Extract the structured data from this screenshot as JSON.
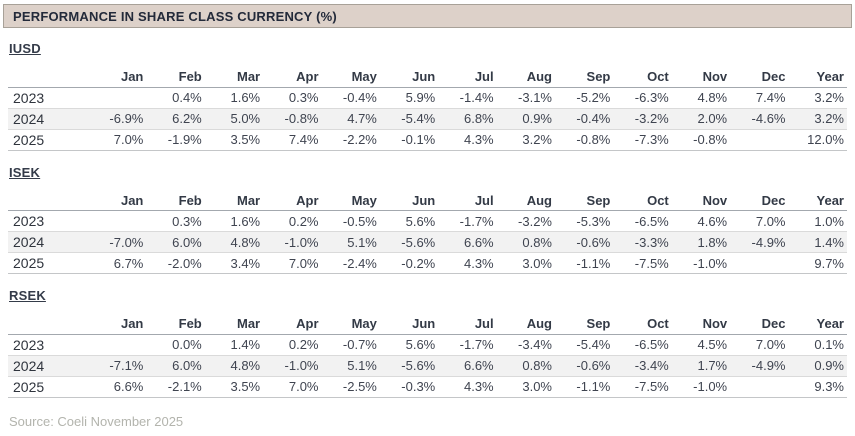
{
  "header": {
    "title": "PERFORMANCE IN SHARE CLASS CURRENCY (%)"
  },
  "columns": [
    "Jan",
    "Feb",
    "Mar",
    "Apr",
    "May",
    "Jun",
    "Jul",
    "Aug",
    "Sep",
    "Oct",
    "Nov",
    "Dec",
    "Year"
  ],
  "sections": [
    {
      "label": "IUSD",
      "rows": [
        {
          "year": "2023",
          "values": [
            "",
            "0.4%",
            "1.6%",
            "0.3%",
            "-0.4%",
            "5.9%",
            "-1.4%",
            "-3.1%",
            "-5.2%",
            "-6.3%",
            "4.8%",
            "7.4%",
            "3.2%"
          ]
        },
        {
          "year": "2024",
          "values": [
            "-6.9%",
            "6.2%",
            "5.0%",
            "-0.8%",
            "4.7%",
            "-5.4%",
            "6.8%",
            "0.9%",
            "-0.4%",
            "-3.2%",
            "2.0%",
            "-4.6%",
            "3.2%"
          ]
        },
        {
          "year": "2025",
          "values": [
            "7.0%",
            "-1.9%",
            "3.5%",
            "7.4%",
            "-2.2%",
            "-0.1%",
            "4.3%",
            "3.2%",
            "-0.8%",
            "-7.3%",
            "-0.8%",
            "",
            "12.0%"
          ]
        }
      ]
    },
    {
      "label": "ISEK",
      "rows": [
        {
          "year": "2023",
          "values": [
            "",
            "0.3%",
            "1.6%",
            "0.2%",
            "-0.5%",
            "5.6%",
            "-1.7%",
            "-3.2%",
            "-5.3%",
            "-6.5%",
            "4.6%",
            "7.0%",
            "1.0%"
          ]
        },
        {
          "year": "2024",
          "values": [
            "-7.0%",
            "6.0%",
            "4.8%",
            "-1.0%",
            "5.1%",
            "-5.6%",
            "6.6%",
            "0.8%",
            "-0.6%",
            "-3.3%",
            "1.8%",
            "-4.9%",
            "1.4%"
          ]
        },
        {
          "year": "2025",
          "values": [
            "6.7%",
            "-2.0%",
            "3.4%",
            "7.0%",
            "-2.4%",
            "-0.2%",
            "4.3%",
            "3.0%",
            "-1.1%",
            "-7.5%",
            "-1.0%",
            "",
            "9.7%"
          ]
        }
      ]
    },
    {
      "label": "RSEK",
      "rows": [
        {
          "year": "2023",
          "values": [
            "",
            "0.0%",
            "1.4%",
            "0.2%",
            "-0.7%",
            "5.6%",
            "-1.7%",
            "-3.4%",
            "-5.4%",
            "-6.5%",
            "4.5%",
            "7.0%",
            "0.1%"
          ]
        },
        {
          "year": "2024",
          "values": [
            "-7.1%",
            "6.0%",
            "4.8%",
            "-1.0%",
            "5.1%",
            "-5.6%",
            "6.6%",
            "0.8%",
            "-0.6%",
            "-3.4%",
            "1.7%",
            "-4.9%",
            "0.9%"
          ]
        },
        {
          "year": "2025",
          "values": [
            "6.6%",
            "-2.1%",
            "3.5%",
            "7.0%",
            "-2.5%",
            "-0.3%",
            "4.3%",
            "3.0%",
            "-1.1%",
            "-7.5%",
            "-1.0%",
            "",
            "9.3%"
          ]
        }
      ]
    }
  ],
  "footer": {
    "source": "Source:  Coeli November 2025"
  },
  "colors": {
    "header_bg": "#ddd1c9",
    "header_border": "#a8a198",
    "title_text": "#232a3a",
    "text": "#3f4450",
    "stripe": "#f2f2f2",
    "muted": "#b3b4ad"
  }
}
